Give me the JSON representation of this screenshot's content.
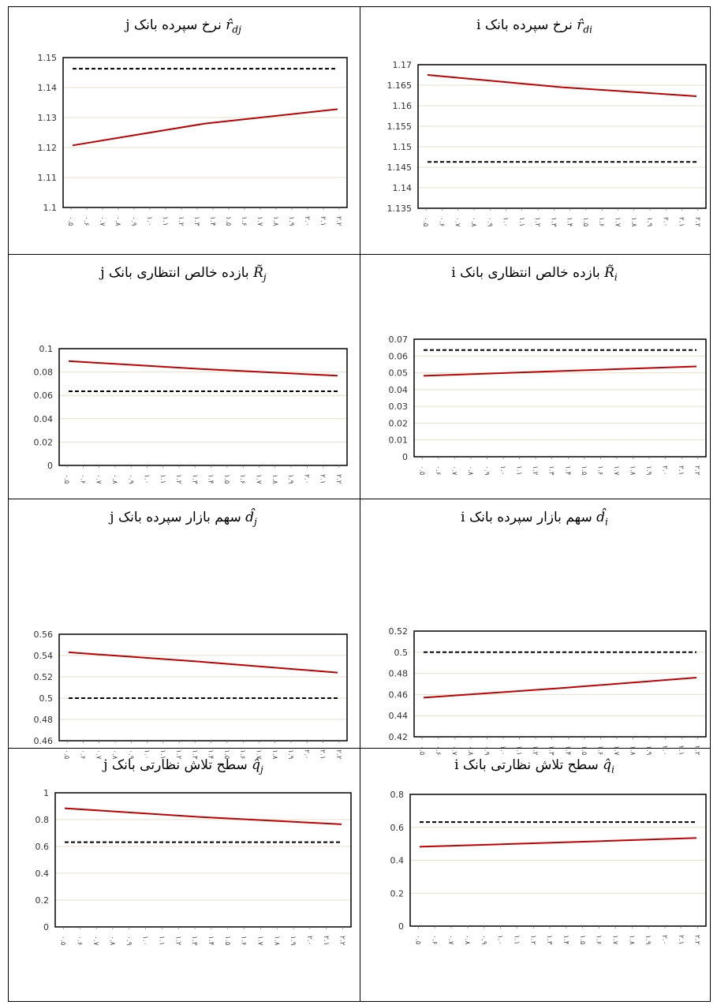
{
  "x_tick_labels": [
    "۰.۵",
    "۰.۶",
    "۰.۷",
    "۰.۸",
    "۰.۹",
    "۱.۰",
    "۱.۱",
    "۱.۲",
    "۱.۳",
    "۱.۴",
    "۱.۵",
    "۱.۶",
    "۱.۷",
    "۱.۸",
    "۱.۹",
    "۲.۰",
    "۲.۱",
    "۲.۲"
  ],
  "panels": [
    {
      "title": {
        "text": "نرخ سپرده بانک",
        "symbol": "r̂",
        "sub": "di",
        "bank": "i"
      },
      "chart_data": {
        "type": "line",
        "yticks": [
          "1.135",
          "1.14",
          "1.145",
          "1.15",
          "1.155",
          "1.16",
          "1.165",
          "1.17"
        ],
        "ylim": [
          1.135,
          1.17
        ],
        "series": [
          {
            "style": "solid",
            "values": [
              1.1675,
              1.1645,
              1.1623
            ]
          },
          {
            "style": "dashed",
            "values": [
              1.1463,
              1.1463,
              1.1463
            ]
          }
        ]
      }
    },
    {
      "title": {
        "text": "نرخ سپرده بانک",
        "symbol": "r̂",
        "sub": "dj",
        "bank": "j"
      },
      "chart_data": {
        "type": "line",
        "yticks": [
          "1.1",
          "1.11",
          "1.12",
          "1.13",
          "1.14",
          "1.15"
        ],
        "ylim": [
          1.1,
          1.15
        ],
        "series": [
          {
            "style": "solid",
            "values": [
              1.1207,
              1.128,
              1.1328
            ]
          },
          {
            "style": "dashed",
            "values": [
              1.1463,
              1.1463,
              1.1463
            ]
          }
        ]
      }
    },
    {
      "title": {
        "text": "بازده خالص انتظاری بانک",
        "symbol": "R̃",
        "sub": "i",
        "bank": "i"
      },
      "chart_data": {
        "type": "line",
        "yticks": [
          "0",
          "0.01",
          "0.02",
          "0.03",
          "0.04",
          "0.05",
          "0.06",
          "0.07"
        ],
        "ylim": [
          0,
          0.07
        ],
        "series": [
          {
            "style": "solid",
            "values": [
              0.0482,
              0.051,
              0.0538
            ]
          },
          {
            "style": "dashed",
            "values": [
              0.0635,
              0.0635,
              0.0635
            ]
          }
        ]
      }
    },
    {
      "title": {
        "text": "بازده خالص انتظاری بانک",
        "symbol": "R̃",
        "sub": "j",
        "bank": "j"
      },
      "chart_data": {
        "type": "line",
        "yticks": [
          "0",
          "0.02",
          "0.04",
          "0.06",
          "0.08",
          "0.1"
        ],
        "ylim": [
          0,
          0.1
        ],
        "series": [
          {
            "style": "solid",
            "values": [
              0.0893,
              0.0825,
              0.0768
            ]
          },
          {
            "style": "dashed",
            "values": [
              0.0635,
              0.0635,
              0.0635
            ]
          }
        ]
      }
    },
    {
      "title": {
        "text": "سهم بازار سپرده بانک",
        "symbol": "d̂",
        "sub": "i",
        "bank": "i"
      },
      "chart_data": {
        "type": "line",
        "yticks": [
          "0.42",
          "0.44",
          "0.46",
          "0.48",
          "0.5",
          "0.52"
        ],
        "ylim": [
          0.42,
          0.52
        ],
        "series": [
          {
            "style": "solid",
            "values": [
              0.457,
              0.466,
              0.476
            ]
          },
          {
            "style": "dashed",
            "values": [
              0.5,
              0.5,
              0.5
            ]
          }
        ]
      }
    },
    {
      "title": {
        "text": "سهم بازار سپرده بانک",
        "symbol": "d̂",
        "sub": "j",
        "bank": "j"
      },
      "chart_data": {
        "type": "line",
        "yticks": [
          "0.46",
          "0.48",
          "0.5",
          "0.52",
          "0.54",
          "0.56"
        ],
        "ylim": [
          0.46,
          0.56
        ],
        "series": [
          {
            "style": "solid",
            "values": [
              0.543,
              0.534,
              0.524
            ]
          },
          {
            "style": "dashed",
            "values": [
              0.5,
              0.5,
              0.5
            ]
          }
        ]
      }
    },
    {
      "title": {
        "text": "سطح تلاش نظارتی بانک",
        "symbol": "q̂",
        "sub": "i",
        "bank": "i"
      },
      "chart_data": {
        "type": "line",
        "yticks": [
          "0",
          "0.2",
          "0.4",
          "0.6",
          "0.8"
        ],
        "ylim": [
          0,
          0.8
        ],
        "series": [
          {
            "style": "solid",
            "values": [
              0.482,
              0.508,
              0.535
            ]
          },
          {
            "style": "dashed",
            "values": [
              0.632,
              0.632,
              0.632
            ]
          }
        ]
      }
    },
    {
      "title": {
        "text": "سطح تلاش نظارتی بانک",
        "symbol": "q̂",
        "sub": "j",
        "bank": "j"
      },
      "chart_data": {
        "type": "line",
        "yticks": [
          "0",
          "0.2",
          "0.4",
          "0.6",
          "0.8",
          "1"
        ],
        "ylim": [
          0,
          1
        ],
        "series": [
          {
            "style": "solid",
            "values": [
              0.885,
              0.818,
              0.765
            ]
          },
          {
            "style": "dashed",
            "values": [
              0.632,
              0.632,
              0.632
            ]
          }
        ]
      }
    }
  ]
}
